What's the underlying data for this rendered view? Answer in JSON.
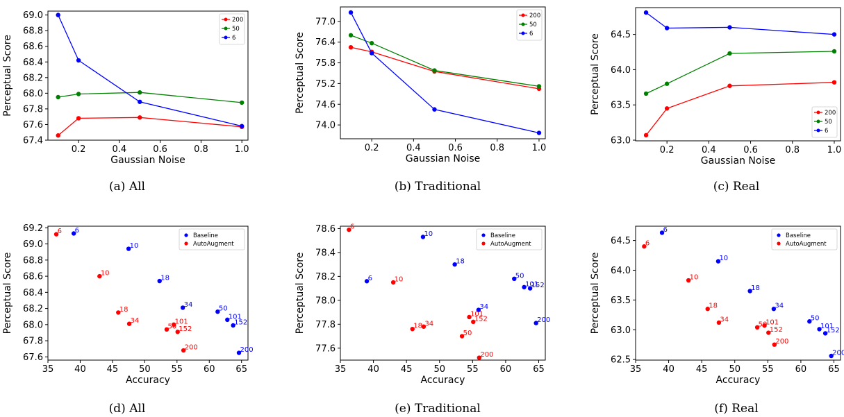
{
  "chart_data": [
    {
      "id": "a",
      "type": "line",
      "caption": "(a) All",
      "xlabel": "Gaussian Noise",
      "ylabel": "Perceptual Score",
      "x": [
        0.1,
        0.2,
        0.5,
        1.0
      ],
      "xlim": [
        0.05,
        1.03
      ],
      "ylim": [
        67.4,
        69.05
      ],
      "xticks": [
        0.2,
        0.4,
        0.6,
        0.8,
        1.0
      ],
      "xtick_labels": [
        "0.2",
        "0.4",
        "0.6",
        "0.8",
        "1.0"
      ],
      "yticks": [
        67.4,
        67.6,
        67.8,
        68.0,
        68.2,
        68.4,
        68.6,
        68.8,
        69.0
      ],
      "ytick_labels": [
        "67.4",
        "67.6",
        "67.8",
        "68.0",
        "68.2",
        "68.4",
        "68.6",
        "68.8",
        "69.0"
      ],
      "legend": "top-right",
      "series": [
        {
          "name": "200",
          "color": "#ff0000",
          "values": [
            67.46,
            67.68,
            67.69,
            67.57
          ]
        },
        {
          "name": "50",
          "color": "#008000",
          "values": [
            67.95,
            67.99,
            68.01,
            67.88
          ]
        },
        {
          "name": "6",
          "color": "#0000ff",
          "values": [
            69.0,
            68.42,
            67.89,
            67.58
          ]
        }
      ]
    },
    {
      "id": "b",
      "type": "line",
      "caption": "(b) Traditional",
      "xlabel": "Gaussian Noise",
      "ylabel": "Perceptual Score",
      "x": [
        0.1,
        0.2,
        0.5,
        1.0
      ],
      "xlim": [
        0.05,
        1.03
      ],
      "ylim": [
        73.6,
        77.42
      ],
      "xticks": [
        0.2,
        0.4,
        0.6,
        0.8,
        1.0
      ],
      "xtick_labels": [
        "0.2",
        "0.4",
        "0.6",
        "0.8",
        "1.0"
      ],
      "yticks": [
        74.0,
        74.6,
        75.2,
        75.8,
        76.4,
        77.0
      ],
      "ytick_labels": [
        "74.0",
        "74.6",
        "75.2",
        "75.8",
        "76.4",
        "77.0"
      ],
      "legend": "top-right",
      "series": [
        {
          "name": "200",
          "color": "#ff0000",
          "values": [
            76.25,
            76.12,
            75.55,
            75.05
          ]
        },
        {
          "name": "50",
          "color": "#008000",
          "values": [
            76.6,
            76.37,
            75.58,
            75.12
          ]
        },
        {
          "name": "6",
          "color": "#0000ff",
          "values": [
            77.26,
            76.08,
            74.45,
            73.77
          ]
        }
      ]
    },
    {
      "id": "c",
      "type": "line",
      "caption": "(c) Real",
      "xlabel": "Gaussian Noise",
      "ylabel": "Perceptual Score",
      "x": [
        0.1,
        0.2,
        0.5,
        1.0
      ],
      "xlim": [
        0.05,
        1.03
      ],
      "ylim": [
        62.99,
        64.88
      ],
      "xticks": [
        0.2,
        0.4,
        0.6,
        0.8,
        1.0
      ],
      "xtick_labels": [
        "0.2",
        "0.4",
        "0.6",
        "0.8",
        "1.0"
      ],
      "yticks": [
        63.0,
        63.5,
        64.0,
        64.5
      ],
      "ytick_labels": [
        "63.0",
        "63.5",
        "64.0",
        "64.5"
      ],
      "legend": "bottom-right",
      "series": [
        {
          "name": "200",
          "color": "#ff0000",
          "values": [
            63.07,
            63.45,
            63.77,
            63.82
          ]
        },
        {
          "name": "50",
          "color": "#008000",
          "values": [
            63.66,
            63.8,
            64.23,
            64.26
          ]
        },
        {
          "name": "6",
          "color": "#0000ff",
          "values": [
            64.81,
            64.59,
            64.6,
            64.5
          ]
        }
      ]
    },
    {
      "id": "d",
      "type": "scatter",
      "caption": "(d) All",
      "xlabel": "Accuracy",
      "ylabel": "Perceptual Score",
      "xlim": [
        35,
        66
      ],
      "ylim": [
        67.56,
        69.22
      ],
      "xticks": [
        35,
        40,
        45,
        50,
        55,
        60,
        65
      ],
      "xtick_labels": [
        "35",
        "40",
        "45",
        "50",
        "55",
        "60",
        "65"
      ],
      "yticks": [
        67.6,
        67.8,
        68.0,
        68.2,
        68.4,
        68.6,
        68.8,
        69.0,
        69.2
      ],
      "ytick_labels": [
        "67.6",
        "67.8",
        "68.0",
        "68.2",
        "68.4",
        "68.6",
        "68.8",
        "69.0",
        "69.2"
      ],
      "legend": "top-right",
      "series": [
        {
          "name": "Baseline",
          "color": "#0000ff",
          "points": [
            {
              "x": 39.0,
              "y": 69.13,
              "label": "6"
            },
            {
              "x": 47.5,
              "y": 68.94,
              "label": "10"
            },
            {
              "x": 52.3,
              "y": 68.54,
              "label": "18"
            },
            {
              "x": 55.9,
              "y": 68.21,
              "label": "34"
            },
            {
              "x": 61.3,
              "y": 68.16,
              "label": "50"
            },
            {
              "x": 62.8,
              "y": 68.06,
              "label": "101"
            },
            {
              "x": 63.7,
              "y": 67.99,
              "label": "152"
            },
            {
              "x": 64.6,
              "y": 67.65,
              "label": "200"
            }
          ]
        },
        {
          "name": "AutoAugment",
          "color": "#ff0000",
          "points": [
            {
              "x": 36.3,
              "y": 69.12,
              "label": "6"
            },
            {
              "x": 43.0,
              "y": 68.6,
              "label": "10"
            },
            {
              "x": 45.9,
              "y": 68.15,
              "label": "18"
            },
            {
              "x": 47.6,
              "y": 68.01,
              "label": "34"
            },
            {
              "x": 53.4,
              "y": 67.94,
              "label": "50"
            },
            {
              "x": 54.5,
              "y": 68.0,
              "label": "101"
            },
            {
              "x": 55.1,
              "y": 67.91,
              "label": "152"
            },
            {
              "x": 56.0,
              "y": 67.68,
              "label": "200"
            }
          ]
        }
      ]
    },
    {
      "id": "e",
      "type": "scatter",
      "caption": "(e) Traditional",
      "xlabel": "Accuracy",
      "ylabel": "Perceptual Score",
      "xlim": [
        35,
        66
      ],
      "ylim": [
        77.5,
        78.62
      ],
      "xticks": [
        35,
        40,
        45,
        50,
        55,
        60,
        65
      ],
      "xtick_labels": [
        "35",
        "40",
        "45",
        "50",
        "55",
        "60",
        "65"
      ],
      "yticks": [
        77.6,
        77.8,
        78.0,
        78.2,
        78.4,
        78.6
      ],
      "ytick_labels": [
        "77.6",
        "77.8",
        "78.0",
        "78.2",
        "78.4",
        "78.6"
      ],
      "legend": "top-right",
      "series": [
        {
          "name": "Baseline",
          "color": "#0000ff",
          "points": [
            {
              "x": 39.0,
              "y": 78.16,
              "label": "6"
            },
            {
              "x": 47.5,
              "y": 78.53,
              "label": "10"
            },
            {
              "x": 52.3,
              "y": 78.3,
              "label": "18"
            },
            {
              "x": 55.9,
              "y": 77.92,
              "label": "34"
            },
            {
              "x": 61.3,
              "y": 78.18,
              "label": "50"
            },
            {
              "x": 62.8,
              "y": 78.11,
              "label": "101"
            },
            {
              "x": 63.7,
              "y": 78.1,
              "label": "152"
            },
            {
              "x": 64.6,
              "y": 77.81,
              "label": "200"
            }
          ]
        },
        {
          "name": "AutoAugment",
          "color": "#ff0000",
          "points": [
            {
              "x": 36.3,
              "y": 78.59,
              "label": "6"
            },
            {
              "x": 43.0,
              "y": 78.15,
              "label": "10"
            },
            {
              "x": 45.9,
              "y": 77.76,
              "label": "18"
            },
            {
              "x": 47.6,
              "y": 77.78,
              "label": "34"
            },
            {
              "x": 53.4,
              "y": 77.7,
              "label": "50"
            },
            {
              "x": 54.5,
              "y": 77.86,
              "label": "101"
            },
            {
              "x": 55.1,
              "y": 77.82,
              "label": "152"
            },
            {
              "x": 56.0,
              "y": 77.52,
              "label": "200"
            }
          ]
        }
      ]
    },
    {
      "id": "f",
      "type": "scatter",
      "caption": "(f) Real",
      "xlabel": "Accuracy",
      "ylabel": "Perceptual Score",
      "xlim": [
        35,
        66
      ],
      "ylim": [
        62.49,
        64.74
      ],
      "xticks": [
        35,
        40,
        45,
        50,
        55,
        60,
        65
      ],
      "xtick_labels": [
        "35",
        "40",
        "45",
        "50",
        "55",
        "60",
        "65"
      ],
      "yticks": [
        62.5,
        63.0,
        63.5,
        64.0,
        64.5
      ],
      "ytick_labels": [
        "62.5",
        "63.0",
        "63.5",
        "64.0",
        "64.5"
      ],
      "legend": "top-right",
      "series": [
        {
          "name": "Baseline",
          "color": "#0000ff",
          "points": [
            {
              "x": 39.0,
              "y": 64.63,
              "label": "6"
            },
            {
              "x": 47.5,
              "y": 64.15,
              "label": "10"
            },
            {
              "x": 52.3,
              "y": 63.65,
              "label": "18"
            },
            {
              "x": 55.9,
              "y": 63.35,
              "label": "34"
            },
            {
              "x": 61.3,
              "y": 63.14,
              "label": "50"
            },
            {
              "x": 62.8,
              "y": 63.01,
              "label": "101"
            },
            {
              "x": 63.7,
              "y": 62.94,
              "label": "152"
            },
            {
              "x": 64.6,
              "y": 62.56,
              "label": "200"
            }
          ]
        },
        {
          "name": "AutoAugment",
          "color": "#ff0000",
          "points": [
            {
              "x": 36.3,
              "y": 64.4,
              "label": "6"
            },
            {
              "x": 43.0,
              "y": 63.83,
              "label": "10"
            },
            {
              "x": 45.9,
              "y": 63.35,
              "label": "18"
            },
            {
              "x": 47.6,
              "y": 63.12,
              "label": "34"
            },
            {
              "x": 53.4,
              "y": 63.04,
              "label": "50"
            },
            {
              "x": 54.5,
              "y": 63.07,
              "label": "101"
            },
            {
              "x": 55.1,
              "y": 62.95,
              "label": "152"
            },
            {
              "x": 56.0,
              "y": 62.75,
              "label": "200"
            }
          ]
        }
      ]
    }
  ]
}
